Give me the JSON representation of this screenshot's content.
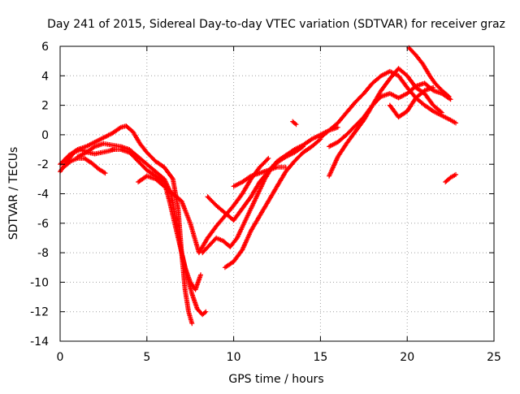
{
  "chart_data": {
    "type": "scatter",
    "title": "Day 241 of 2015, Sidereal Day-to-day VTEC variation (SDTVAR) for receiver graz",
    "xlabel": "GPS time / hours",
    "ylabel": "SDTVAR / TECUs",
    "xlim": [
      0,
      25
    ],
    "ylim": [
      -14,
      6
    ],
    "x_ticks": [
      0,
      5,
      10,
      15,
      20,
      25
    ],
    "y_ticks": [
      -14,
      -12,
      -10,
      -8,
      -6,
      -4,
      -2,
      0,
      2,
      4,
      6
    ],
    "x_tick_labels": [
      "0",
      "5",
      "10",
      "15",
      "20",
      "25"
    ],
    "y_tick_labels": [
      "-14",
      "-12",
      "-10",
      "-8",
      "-6",
      "-4",
      "-2",
      "0",
      "2",
      "4",
      "6"
    ],
    "grid": true,
    "marker": "plus",
    "color": "#ff0000",
    "series": [
      {
        "x": [
          0.0,
          0.4,
          0.8,
          1.2,
          1.6,
          2.0,
          2.4,
          2.8,
          3.1
        ],
        "y": [
          -2.5,
          -1.8,
          -1.2,
          -1.0,
          -1.2,
          -1.3,
          -1.2,
          -1.1,
          -1.0
        ]
      },
      {
        "x": [
          0.0,
          0.5,
          1.0,
          1.5,
          2.0,
          2.5,
          3.0,
          3.5,
          3.8,
          4.2,
          4.6,
          5.0,
          5.5,
          6.0,
          6.5,
          6.8,
          7.0,
          7.2,
          7.4,
          7.6
        ],
        "y": [
          -2.0,
          -1.4,
          -1.0,
          -0.8,
          -0.5,
          -0.2,
          0.1,
          0.5,
          0.6,
          0.2,
          -0.6,
          -1.2,
          -1.8,
          -2.2,
          -3.0,
          -5.0,
          -8.0,
          -10.5,
          -12.0,
          -12.8
        ]
      },
      {
        "x": [
          0.2,
          0.6,
          1.0,
          1.4,
          1.8,
          2.2,
          2.6
        ],
        "y": [
          -2.2,
          -1.8,
          -1.6,
          -1.6,
          -1.9,
          -2.3,
          -2.6
        ]
      },
      {
        "x": [
          1.0,
          1.5,
          2.0,
          2.5,
          3.0,
          3.5,
          4.0,
          4.5,
          5.0,
          5.5,
          6.0,
          6.4,
          6.7,
          7.0,
          7.3,
          7.6,
          7.9,
          8.2,
          8.4
        ],
        "y": [
          -1.5,
          -1.2,
          -0.8,
          -0.6,
          -0.7,
          -0.8,
          -1.0,
          -1.5,
          -2.0,
          -2.5,
          -3.0,
          -4.0,
          -6.0,
          -8.0,
          -9.5,
          -10.8,
          -11.8,
          -12.2,
          -12.0
        ]
      },
      {
        "x": [
          3.0,
          3.5,
          4.0,
          4.5,
          5.0,
          5.5,
          6.0,
          6.3,
          6.6,
          6.9,
          7.2,
          7.5,
          7.8,
          8.1
        ],
        "y": [
          -1.0,
          -1.0,
          -1.2,
          -1.8,
          -2.4,
          -2.8,
          -3.2,
          -4.5,
          -6.0,
          -7.5,
          -9.0,
          -10.0,
          -10.5,
          -9.5
        ]
      },
      {
        "x": [
          4.5,
          5.0,
          5.5,
          6.0,
          6.5,
          7.0,
          7.5,
          8.0,
          8.5,
          9.0,
          9.5,
          10.0,
          10.5,
          11.0,
          11.5,
          12.0
        ],
        "y": [
          -3.2,
          -2.8,
          -3.0,
          -3.5,
          -4.0,
          -4.5,
          -6.0,
          -8.0,
          -7.0,
          -6.2,
          -5.5,
          -4.8,
          -4.0,
          -3.0,
          -2.2,
          -1.6
        ]
      },
      {
        "x": [
          8.5,
          9.0,
          9.5,
          10.0,
          10.5,
          11.0,
          11.5,
          12.0,
          12.5,
          13.0,
          13.5,
          14.0,
          14.5,
          15.0,
          15.5,
          16.0
        ],
        "y": [
          -4.2,
          -4.8,
          -5.3,
          -5.8,
          -5.0,
          -4.2,
          -3.2,
          -2.5,
          -1.8,
          -1.4,
          -1.0,
          -0.7,
          -0.3,
          0.0,
          0.3,
          0.5
        ]
      },
      {
        "x": [
          8.2,
          8.6,
          9.0,
          9.4,
          9.8,
          10.2,
          10.6,
          11.0,
          11.4,
          11.8,
          12.2,
          12.6,
          13.0,
          13.5,
          14.0
        ],
        "y": [
          -8.0,
          -7.5,
          -7.0,
          -7.2,
          -7.6,
          -7.0,
          -6.0,
          -5.0,
          -4.0,
          -3.0,
          -2.2,
          -1.8,
          -1.5,
          -1.2,
          -0.8
        ]
      },
      {
        "x": [
          9.5,
          10.0,
          10.5,
          11.0,
          11.5,
          12.0,
          12.5,
          13.0,
          13.5,
          14.0,
          14.5,
          15.0
        ],
        "y": [
          -9.0,
          -8.6,
          -7.8,
          -6.5,
          -5.5,
          -4.5,
          -3.5,
          -2.5,
          -1.8,
          -1.2,
          -0.8,
          -0.3
        ]
      },
      {
        "x": [
          10.0,
          10.5,
          11.0,
          11.5,
          12.0,
          12.5,
          13.0
        ],
        "y": [
          -3.5,
          -3.2,
          -2.8,
          -2.6,
          -2.4,
          -2.2,
          -2.2
        ]
      },
      {
        "x": [
          15.0,
          15.5,
          16.0,
          16.5,
          17.0,
          17.5,
          18.0,
          18.5,
          19.0,
          19.5,
          20.0,
          20.5,
          21.0,
          21.5,
          22.0,
          22.5,
          22.8
        ],
        "y": [
          -0.2,
          0.3,
          0.8,
          1.5,
          2.2,
          2.8,
          3.5,
          4.0,
          4.3,
          4.0,
          3.2,
          2.5,
          2.0,
          1.6,
          1.3,
          1.0,
          0.8
        ]
      },
      {
        "x": [
          15.5,
          16.0,
          16.5,
          17.0,
          17.5,
          18.0,
          18.5,
          19.0,
          19.5,
          20.0,
          20.5,
          21.0,
          21.5,
          22.0,
          22.5
        ],
        "y": [
          -0.8,
          -0.5,
          0.0,
          0.6,
          1.2,
          2.0,
          2.6,
          2.8,
          2.5,
          2.8,
          3.3,
          3.5,
          3.0,
          2.8,
          2.4
        ]
      },
      {
        "x": [
          15.5,
          16.0,
          16.5,
          17.0,
          17.5,
          18.0,
          18.5,
          19.0,
          19.5,
          20.0,
          20.5,
          21.0,
          21.5,
          22.0
        ],
        "y": [
          -2.8,
          -1.5,
          -0.6,
          0.2,
          1.0,
          2.0,
          3.0,
          3.8,
          4.5,
          4.0,
          3.2,
          2.8,
          2.0,
          1.5
        ]
      },
      {
        "x": [
          19.0,
          19.5,
          20.0,
          20.5,
          21.0,
          21.5
        ],
        "y": [
          2.0,
          1.2,
          1.6,
          2.5,
          3.0,
          3.2
        ]
      },
      {
        "x": [
          20.1,
          20.5,
          20.9,
          21.3,
          21.6,
          22.0,
          22.4
        ],
        "y": [
          5.9,
          5.4,
          4.8,
          4.0,
          3.5,
          3.0,
          2.6
        ]
      },
      {
        "x": [
          22.2,
          22.5,
          22.8
        ],
        "y": [
          -3.2,
          -2.9,
          -2.7
        ]
      },
      {
        "x": [
          13.4,
          13.6
        ],
        "y": [
          0.9,
          0.7
        ]
      }
    ]
  }
}
